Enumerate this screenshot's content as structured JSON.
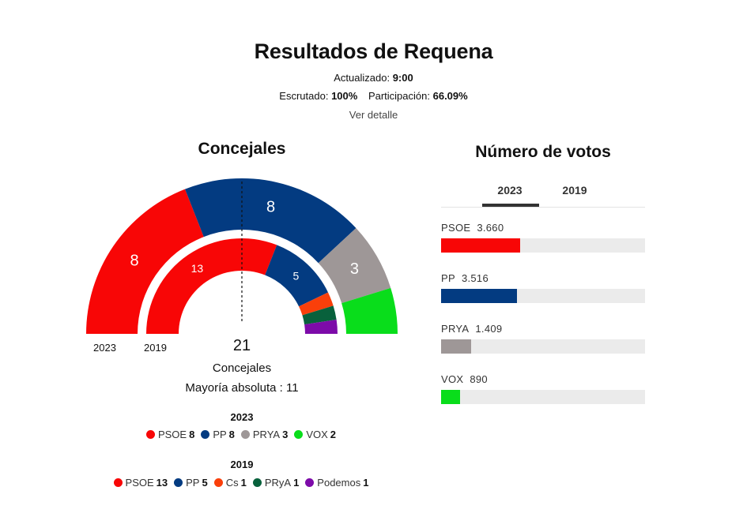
{
  "header": {
    "title": "Resultados de Requena",
    "updated_label": "Actualizado:",
    "updated_value": "9:00",
    "escrutado_label": "Escrutado:",
    "escrutado_value": "100%",
    "participacion_label": "Participación:",
    "participacion_value": "66.09%",
    "detail_link": "Ver detalle"
  },
  "concejales": {
    "title": "Concejales",
    "total": "21",
    "total_label": "Concejales",
    "majority_label": "Mayoría absoluta : 11",
    "outer_year_label": "2023",
    "inner_year_label": "2019"
  },
  "chart_data": [
    {
      "type": "pie",
      "subtype": "parliament-hemicycle",
      "title": "Concejales",
      "year": "2023",
      "ring": "outer",
      "total_seats": 21,
      "majority": 11,
      "categories": [
        "PSOE",
        "PP",
        "PRYA",
        "VOX"
      ],
      "values": [
        8,
        8,
        3,
        2
      ],
      "colors": [
        "#f80606",
        "#033b81",
        "#9e9797",
        "#09dd1b"
      ],
      "slice_labels_shown": [
        true,
        true,
        true,
        false
      ]
    },
    {
      "type": "pie",
      "subtype": "parliament-hemicycle",
      "title": "Concejales",
      "year": "2019",
      "ring": "inner",
      "total_seats": 21,
      "majority": 11,
      "categories": [
        "PSOE",
        "PP",
        "Cs",
        "PRyA",
        "Podemos"
      ],
      "values": [
        13,
        5,
        1,
        1,
        1
      ],
      "colors": [
        "#f80606",
        "#033b81",
        "#fa3f0a",
        "#08613c",
        "#7d0ba9"
      ],
      "slice_labels_shown": [
        true,
        true,
        false,
        false,
        false
      ]
    },
    {
      "type": "bar",
      "orientation": "horizontal",
      "title": "Número de votos",
      "selected_tab": "2023",
      "tabs": [
        "2023",
        "2019"
      ],
      "categories": [
        "PSOE",
        "PP",
        "PRYA",
        "VOX"
      ],
      "values": [
        3660,
        3516,
        1409,
        890
      ],
      "value_labels": [
        "3.660",
        "3.516",
        "1.409",
        "890"
      ],
      "colors": [
        "#f80606",
        "#033b81",
        "#9e9797",
        "#09dd1b"
      ],
      "bar_scale_max": 9475
    }
  ],
  "legend": {
    "year_2023": "2023",
    "year_2019": "2019",
    "items_2023": [
      {
        "name": "PSOE",
        "seats": "8",
        "color": "#f80606"
      },
      {
        "name": "PP",
        "seats": "8",
        "color": "#033b81"
      },
      {
        "name": "PRYA",
        "seats": "3",
        "color": "#9e9797"
      },
      {
        "name": "VOX",
        "seats": "2",
        "color": "#09dd1b"
      }
    ],
    "items_2019": [
      {
        "name": "PSOE",
        "seats": "13",
        "color": "#f80606"
      },
      {
        "name": "PP",
        "seats": "5",
        "color": "#033b81"
      },
      {
        "name": "Cs",
        "seats": "1",
        "color": "#fa3f0a"
      },
      {
        "name": "PRyA",
        "seats": "1",
        "color": "#08613c"
      },
      {
        "name": "Podemos",
        "seats": "1",
        "color": "#7d0ba9"
      }
    ]
  },
  "votos": {
    "title": "Número de votos",
    "tab_2023": "2023",
    "tab_2019": "2019"
  }
}
